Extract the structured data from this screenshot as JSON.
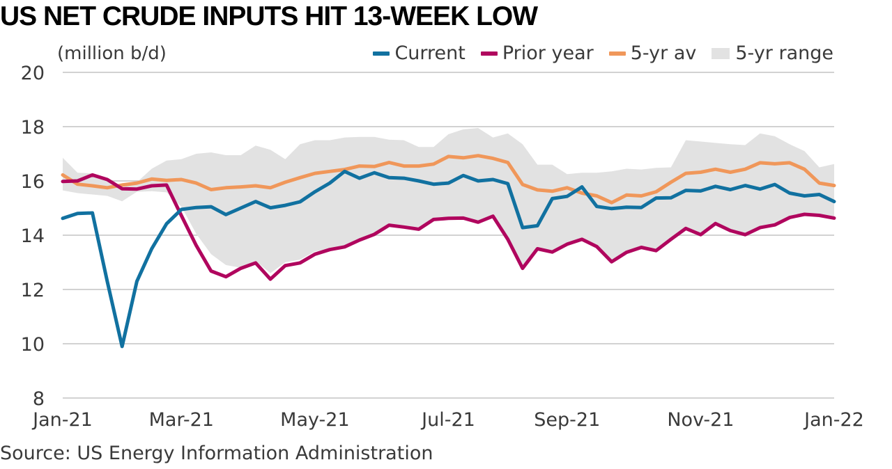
{
  "title": "US NET CRUDE INPUTS HIT 13-WEEK LOW",
  "unit_label": "(million b/d)",
  "source": "Source: US Energy Information Administration",
  "colors": {
    "current": "#1171a0",
    "prior": "#b0065e",
    "avg": "#f0975a",
    "range": "#e2e2e2",
    "grid": "#d2d2d2"
  },
  "chart_data": {
    "type": "line",
    "x_label_ticks": [
      "Jan-21",
      "Mar-21",
      "May-21",
      "Jul-21",
      "Sep-21",
      "Nov-21",
      "Jan-22"
    ],
    "x_label_weeks": [
      0,
      8,
      17,
      26,
      34,
      43,
      52
    ],
    "ylim": [
      8,
      20
    ],
    "y_ticks": [
      8,
      10,
      12,
      14,
      16,
      18,
      20
    ],
    "grid": true,
    "legend_position": "top-right",
    "series": [
      {
        "name": "Current",
        "key": "current",
        "values": [
          14.62,
          14.8,
          14.82,
          12.3,
          9.9,
          12.3,
          13.5,
          14.42,
          14.95,
          15.02,
          15.05,
          14.76,
          15.0,
          15.24,
          15.01,
          15.1,
          15.23,
          15.6,
          15.92,
          16.35,
          16.1,
          16.3,
          16.12,
          16.1,
          16.0,
          15.88,
          15.92,
          16.2,
          16.0,
          16.05,
          15.9,
          14.28,
          14.35,
          15.35,
          15.43,
          15.78,
          15.06,
          14.98,
          15.03,
          15.02,
          15.37,
          15.38,
          15.65,
          15.63,
          15.8,
          15.68,
          15.83,
          15.7,
          15.87,
          15.55,
          15.45,
          15.5,
          15.24
        ]
      },
      {
        "name": "Prior year",
        "key": "prior",
        "values": [
          15.98,
          16.0,
          16.22,
          16.05,
          15.71,
          15.7,
          15.82,
          15.85,
          14.72,
          13.62,
          12.68,
          12.47,
          12.78,
          12.98,
          12.38,
          12.88,
          12.98,
          13.3,
          13.47,
          13.57,
          13.82,
          14.03,
          14.37,
          14.3,
          14.22,
          14.58,
          14.62,
          14.63,
          14.48,
          14.7,
          13.85,
          12.78,
          13.5,
          13.38,
          13.67,
          13.85,
          13.58,
          13.02,
          13.37,
          13.55,
          13.43,
          13.85,
          14.25,
          14.02,
          14.43,
          14.17,
          14.02,
          14.28,
          14.38,
          14.65,
          14.77,
          14.73,
          14.63
        ]
      },
      {
        "name": "5-yr av",
        "key": "avg",
        "values": [
          16.22,
          15.88,
          15.82,
          15.75,
          15.85,
          15.92,
          16.07,
          16.02,
          16.05,
          15.92,
          15.68,
          15.75,
          15.78,
          15.82,
          15.75,
          15.95,
          16.12,
          16.28,
          16.35,
          16.42,
          16.55,
          16.53,
          16.68,
          16.55,
          16.55,
          16.62,
          16.9,
          16.85,
          16.93,
          16.83,
          16.68,
          15.87,
          15.67,
          15.62,
          15.75,
          15.55,
          15.45,
          15.2,
          15.48,
          15.45,
          15.6,
          15.95,
          16.28,
          16.32,
          16.43,
          16.32,
          16.43,
          16.67,
          16.63,
          16.67,
          16.43,
          15.92,
          15.83
        ]
      },
      {
        "name": "5-yr range",
        "key": "range",
        "low": [
          15.65,
          15.55,
          15.5,
          15.45,
          15.25,
          15.6,
          15.62,
          15.58,
          15.05,
          14.05,
          13.3,
          12.9,
          12.8,
          13.05,
          12.6,
          13.0,
          13.1,
          13.4,
          13.5,
          13.6,
          13.85,
          14.05,
          14.4,
          14.35,
          14.3,
          14.6,
          14.65,
          14.65,
          14.55,
          14.75,
          13.9,
          12.85,
          13.55,
          13.45,
          13.7,
          13.9,
          13.6,
          13.1,
          13.4,
          13.6,
          13.45,
          13.9,
          14.3,
          14.05,
          14.5,
          14.2,
          14.05,
          14.3,
          14.4,
          14.7,
          14.8,
          14.75,
          14.65
        ],
        "high": [
          16.85,
          16.3,
          16.28,
          16.1,
          15.75,
          15.95,
          16.45,
          16.75,
          16.8,
          17.0,
          17.05,
          16.95,
          16.95,
          17.3,
          17.15,
          16.8,
          17.35,
          17.5,
          17.5,
          17.6,
          17.62,
          17.62,
          17.52,
          17.5,
          17.25,
          17.25,
          17.72,
          17.9,
          17.95,
          17.6,
          17.75,
          17.35,
          16.6,
          16.6,
          16.25,
          16.3,
          16.3,
          16.35,
          16.45,
          16.42,
          16.48,
          16.5,
          17.5,
          17.45,
          17.4,
          17.35,
          17.32,
          17.75,
          17.65,
          17.35,
          17.1,
          16.5,
          16.62
        ]
      }
    ]
  }
}
